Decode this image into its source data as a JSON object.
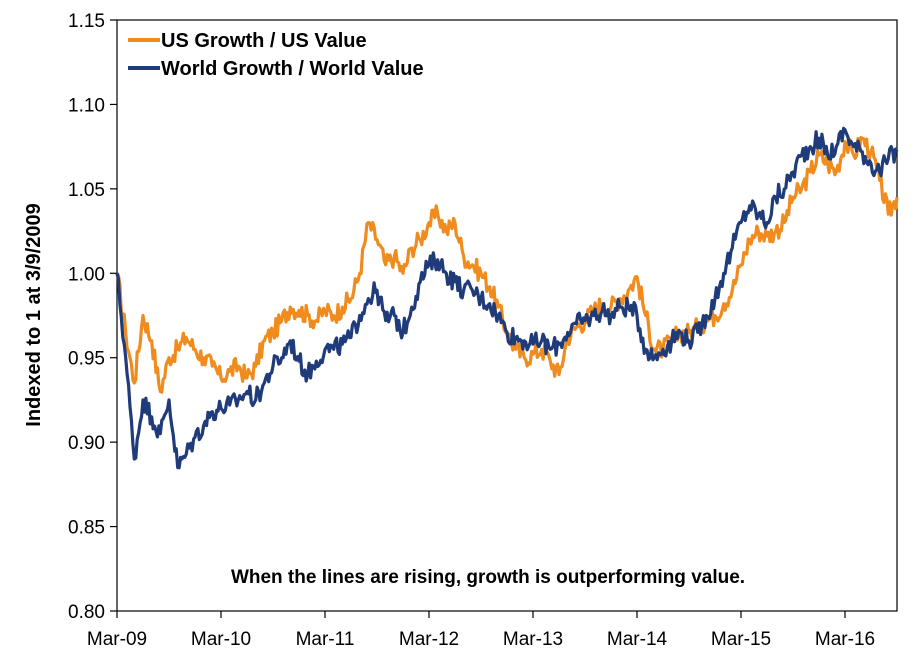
{
  "chart_data": {
    "type": "line",
    "ylabel": "Indexed to 1 at 3/9/2009",
    "xlabel": "",
    "ylim": [
      0.8,
      1.15
    ],
    "yticks": [
      "0.80",
      "0.85",
      "0.90",
      "0.95",
      "1.00",
      "1.05",
      "1.10",
      "1.15"
    ],
    "xlim": [
      "2009-03",
      "2016-09"
    ],
    "xticks": [
      "Mar-09",
      "Mar-10",
      "Mar-11",
      "Mar-12",
      "Mar-13",
      "Mar-14",
      "Mar-15",
      "Mar-16"
    ],
    "grid": false,
    "legend_position": "top-left",
    "annotation": "When the lines are rising, growth is outperforming value.",
    "x": [
      "2009-03",
      "2009-04",
      "2009-05",
      "2009-06",
      "2009-07",
      "2009-08",
      "2009-09",
      "2009-10",
      "2009-11",
      "2009-12",
      "2010-01",
      "2010-02",
      "2010-03",
      "2010-04",
      "2010-05",
      "2010-06",
      "2010-07",
      "2010-08",
      "2010-09",
      "2010-10",
      "2010-11",
      "2010-12",
      "2011-01",
      "2011-02",
      "2011-03",
      "2011-04",
      "2011-05",
      "2011-06",
      "2011-07",
      "2011-08",
      "2011-09",
      "2011-10",
      "2011-11",
      "2011-12",
      "2012-01",
      "2012-02",
      "2012-03",
      "2012-04",
      "2012-05",
      "2012-06",
      "2012-07",
      "2012-08",
      "2012-09",
      "2012-10",
      "2012-11",
      "2012-12",
      "2013-01",
      "2013-02",
      "2013-03",
      "2013-04",
      "2013-05",
      "2013-06",
      "2013-07",
      "2013-08",
      "2013-09",
      "2013-10",
      "2013-11",
      "2013-12",
      "2014-01",
      "2014-02",
      "2014-03",
      "2014-04",
      "2014-05",
      "2014-06",
      "2014-07",
      "2014-08",
      "2014-09",
      "2014-10",
      "2014-11",
      "2014-12",
      "2015-01",
      "2015-02",
      "2015-03",
      "2015-04",
      "2015-05",
      "2015-06",
      "2015-07",
      "2015-08",
      "2015-09",
      "2015-10",
      "2015-11",
      "2015-12",
      "2016-01",
      "2016-02",
      "2016-03",
      "2016-04",
      "2016-05",
      "2016-06",
      "2016-07",
      "2016-08",
      "2016-09"
    ],
    "series": [
      {
        "name": "US Growth / US Value",
        "color": "#F08C1E",
        "values": [
          1.0,
          0.965,
          0.935,
          0.975,
          0.96,
          0.93,
          0.95,
          0.955,
          0.962,
          0.955,
          0.95,
          0.945,
          0.938,
          0.942,
          0.945,
          0.938,
          0.945,
          0.96,
          0.965,
          0.972,
          0.98,
          0.978,
          0.975,
          0.972,
          0.978,
          0.975,
          0.98,
          0.985,
          1.0,
          1.03,
          1.02,
          1.005,
          1.01,
          1.0,
          1.015,
          1.02,
          1.03,
          1.035,
          1.025,
          1.03,
          1.01,
          1.005,
          1.0,
          0.992,
          0.98,
          0.965,
          0.955,
          0.95,
          0.952,
          0.955,
          0.948,
          0.94,
          0.962,
          0.968,
          0.972,
          0.978,
          0.982,
          0.98,
          0.985,
          0.99,
          0.998,
          0.975,
          0.955,
          0.955,
          0.96,
          0.965,
          0.965,
          0.968,
          0.972,
          0.975,
          0.982,
          0.99,
          1.005,
          1.02,
          1.025,
          1.022,
          1.025,
          1.03,
          1.045,
          1.05,
          1.06,
          1.07,
          1.065,
          1.06,
          1.078,
          1.07,
          1.08,
          1.072,
          1.055,
          1.035,
          1.045
        ]
      },
      {
        "name": "World Growth / World Value",
        "color": "#1F3B7A",
        "values": [
          1.0,
          0.95,
          0.89,
          0.925,
          0.915,
          0.905,
          0.925,
          0.885,
          0.893,
          0.903,
          0.91,
          0.918,
          0.92,
          0.922,
          0.925,
          0.93,
          0.925,
          0.935,
          0.945,
          0.95,
          0.96,
          0.948,
          0.94,
          0.948,
          0.955,
          0.955,
          0.958,
          0.962,
          0.975,
          0.985,
          0.99,
          0.972,
          0.975,
          0.965,
          0.98,
          0.995,
          1.005,
          1.008,
          1.0,
          0.995,
          0.99,
          0.99,
          0.985,
          0.982,
          0.975,
          0.965,
          0.962,
          0.96,
          0.958,
          0.96,
          0.955,
          0.958,
          0.965,
          0.97,
          0.972,
          0.975,
          0.978,
          0.975,
          0.98,
          0.98,
          0.975,
          0.955,
          0.95,
          0.955,
          0.96,
          0.965,
          0.96,
          0.965,
          0.975,
          0.985,
          1.0,
          1.015,
          1.03,
          1.04,
          1.035,
          1.03,
          1.045,
          1.05,
          1.06,
          1.07,
          1.075,
          1.08,
          1.07,
          1.075,
          1.085,
          1.075,
          1.072,
          1.065,
          1.06,
          1.068,
          1.072
        ]
      }
    ]
  }
}
